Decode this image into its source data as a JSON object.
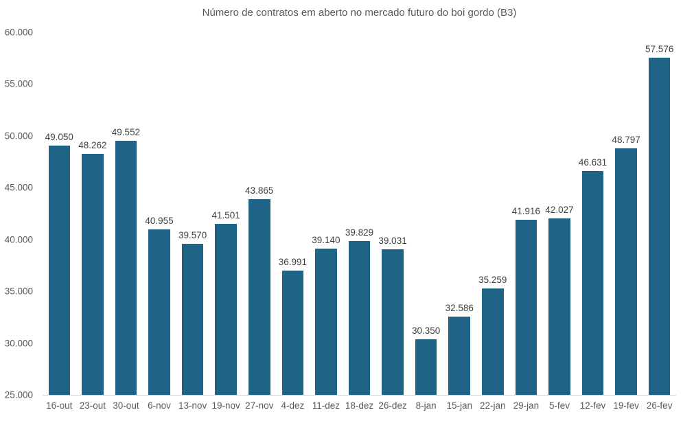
{
  "title": "Número de contratos em aberto no mercado futuro do boi gordo (B3)",
  "colors": {
    "bar": "#1F6386",
    "axis_line": "#d9d9d9",
    "tick_text": "#595959",
    "data_label_text": "#3f3f3f",
    "title_text": "#595959",
    "background": "#ffffff"
  },
  "chart_data": {
    "type": "bar",
    "title": "Número de contratos em aberto no mercado futuro do boi gordo (B3)",
    "xlabel": "",
    "ylabel": "",
    "categories": [
      "16-out",
      "23-out",
      "30-out",
      "6-nov",
      "13-nov",
      "19-nov",
      "27-nov",
      "4-dez",
      "11-dez",
      "18-dez",
      "26-dez",
      "8-jan",
      "15-jan",
      "22-jan",
      "29-jan",
      "5-fev",
      "12-fev",
      "19-fev",
      "26-fev"
    ],
    "values": [
      49050,
      48262,
      49552,
      40955,
      39570,
      41501,
      43865,
      36991,
      39140,
      39829,
      39031,
      30350,
      32586,
      35259,
      41916,
      42027,
      46631,
      48797,
      57576
    ],
    "value_labels": [
      "49.050",
      "48.262",
      "49.552",
      "40.955",
      "39.570",
      "41.501",
      "43.865",
      "36.991",
      "39.140",
      "39.829",
      "39.031",
      "30.350",
      "32.586",
      "35.259",
      "41.916",
      "42.027",
      "46.631",
      "48.797",
      "57.576"
    ],
    "y_ticks": [
      "60.000",
      "55.000",
      "50.000",
      "45.000",
      "40.000",
      "35.000",
      "30.000",
      "25.000"
    ],
    "ylim": [
      25000,
      60000
    ],
    "grid": false,
    "legend": false,
    "bar_color": "#1F6386"
  }
}
